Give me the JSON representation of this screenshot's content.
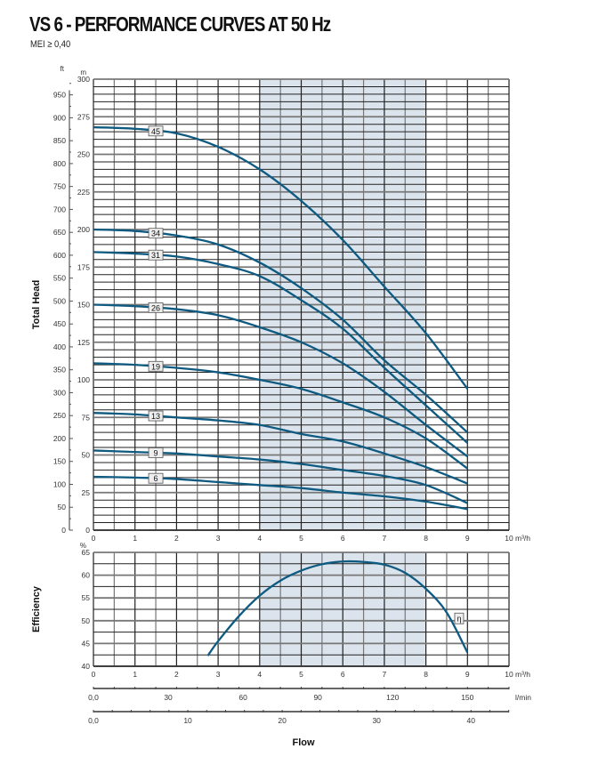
{
  "title": "VS 6 - PERFORMANCE CURVES AT 50 Hz",
  "subtitle": "MEI ≥ 0,40",
  "colors": {
    "curve": "#0e5a80",
    "shade": "#dbe4ec",
    "grid": "#222222"
  },
  "chart_data": [
    {
      "type": "line",
      "ylabel": "Total Head",
      "xunit": "m³/h",
      "yunit_left_outer": "ft",
      "yunit": "m",
      "xlim": [
        0,
        10
      ],
      "ylim": [
        0,
        300
      ],
      "ft_ticks": [
        0,
        50,
        100,
        150,
        200,
        250,
        300,
        350,
        400,
        450,
        500,
        550,
        600,
        650,
        700,
        750,
        800,
        850,
        900,
        950
      ],
      "x_ticks": [
        0,
        1,
        2,
        3,
        4,
        5,
        6,
        7,
        8,
        9,
        10
      ],
      "y_ticks": [
        0,
        25,
        50,
        75,
        100,
        125,
        150,
        175,
        200,
        225,
        250,
        275,
        300
      ],
      "grid": true,
      "shaded_range": [
        4,
        8
      ],
      "x": [
        0,
        1,
        2,
        3,
        4,
        5,
        6,
        7,
        8,
        9
      ],
      "series": [
        {
          "name": "45",
          "values": [
            268,
            267,
            264,
            255,
            240,
            219,
            193,
            162,
            131,
            94
          ]
        },
        {
          "name": "34",
          "values": [
            200,
            199,
            196,
            190,
            178,
            161,
            140,
            113,
            90,
            65
          ]
        },
        {
          "name": "31",
          "values": [
            185,
            184,
            182,
            177,
            169,
            153,
            134,
            108,
            83,
            58
          ]
        },
        {
          "name": "26",
          "values": [
            150,
            149,
            147,
            143,
            135,
            125,
            111,
            92,
            70,
            49
          ]
        },
        {
          "name": "19",
          "values": [
            111,
            110,
            108,
            105,
            100,
            94,
            85,
            75,
            61,
            41
          ]
        },
        {
          "name": "13",
          "values": [
            78,
            77,
            75,
            73,
            70,
            64,
            59,
            51,
            42,
            31
          ]
        },
        {
          "name": "9",
          "values": [
            53,
            52,
            51,
            49,
            47,
            44,
            40,
            36,
            30,
            18
          ]
        },
        {
          "name": "6",
          "values": [
            35.5,
            35,
            34,
            32,
            30,
            28,
            25,
            22.5,
            19,
            14
          ]
        }
      ]
    },
    {
      "type": "line",
      "ylabel": "Efficiency",
      "xunit": "m³/h",
      "yunit": "%",
      "xlim": [
        0,
        10
      ],
      "ylim": [
        40,
        65
      ],
      "x_ticks": [
        0,
        1,
        2,
        3,
        4,
        5,
        6,
        7,
        8,
        9,
        10
      ],
      "y_ticks": [
        40,
        45,
        50,
        55,
        60,
        65
      ],
      "grid": true,
      "shaded_range": [
        4,
        8
      ],
      "series": [
        {
          "name": "η",
          "x": [
            2.75,
            3,
            3.5,
            4,
            4.5,
            5,
            5.5,
            6,
            6.5,
            7,
            7.5,
            8,
            8.5,
            9
          ],
          "values": [
            42.3,
            45.5,
            51,
            55.5,
            58.8,
            61,
            62.4,
            63,
            62.9,
            62.3,
            60.5,
            57,
            51.8,
            43
          ]
        }
      ]
    }
  ],
  "flow_axes": {
    "label": "Flow",
    "lmin": {
      "unit": "l/min",
      "tick_labels": [
        "0,0",
        "30",
        "60",
        "90",
        "120",
        "150"
      ],
      "ticks": [
        0,
        30,
        60,
        90,
        120,
        150
      ]
    },
    "gpm": {
      "tick_labels": [
        "0,0",
        "10",
        "20",
        "30",
        "40"
      ],
      "ticks": [
        0,
        10,
        20,
        30,
        40
      ]
    }
  }
}
